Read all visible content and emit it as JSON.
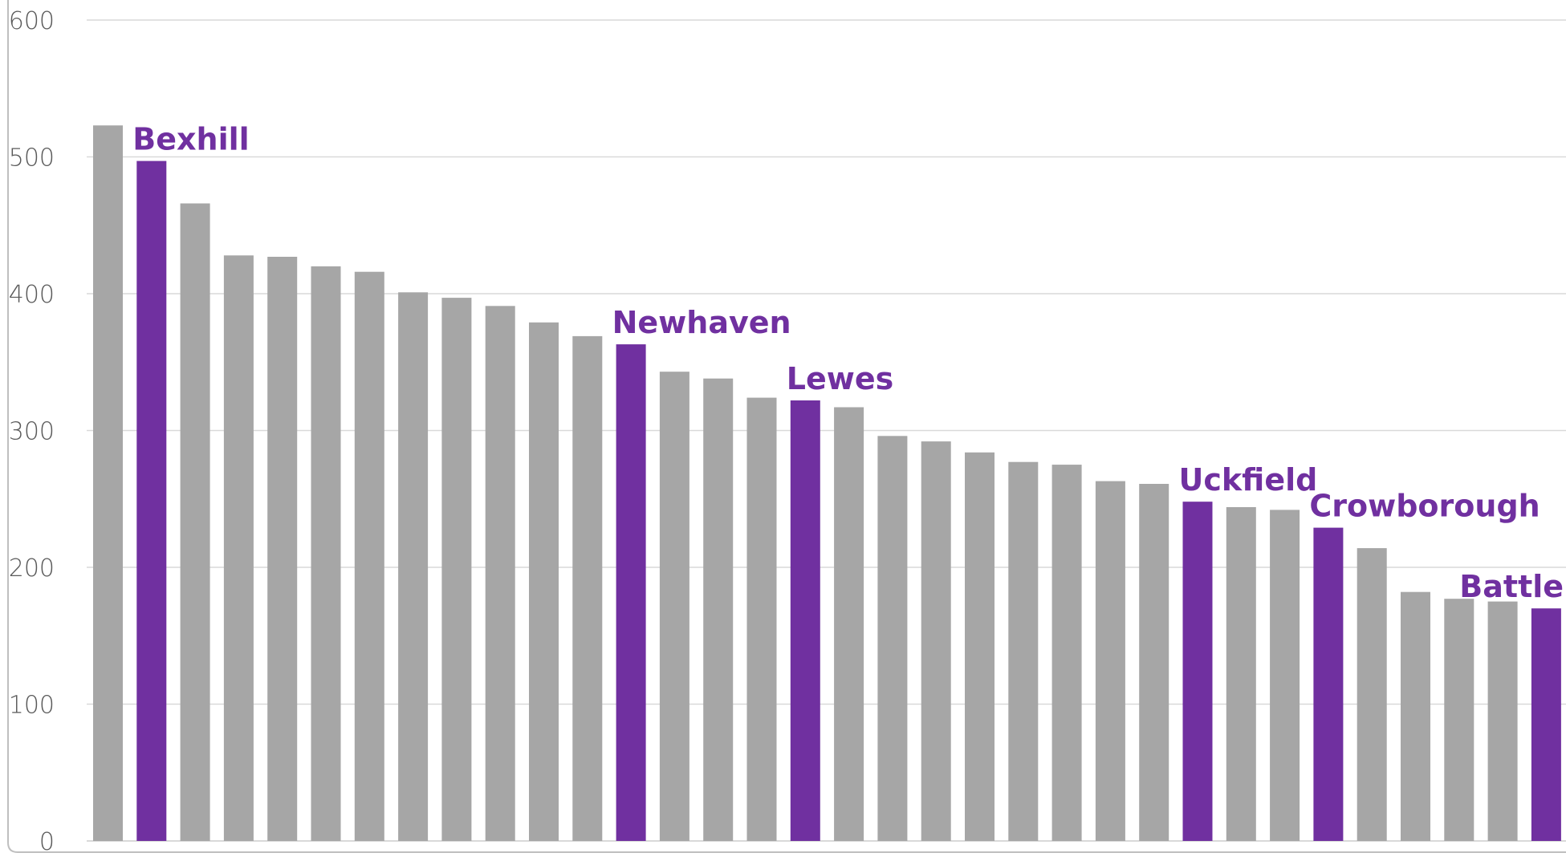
{
  "chart_data": {
    "type": "bar",
    "ylim": [
      0,
      600
    ],
    "yticks": [
      0,
      100,
      200,
      300,
      400,
      500,
      600
    ],
    "ytick_labels": [
      "0",
      "100",
      "200",
      "300",
      "400",
      "500",
      "600"
    ],
    "grid": true,
    "values": [
      523,
      497,
      466,
      428,
      427,
      420,
      416,
      401,
      397,
      391,
      379,
      369,
      363,
      343,
      338,
      324,
      322,
      317,
      296,
      292,
      284,
      277,
      275,
      263,
      261,
      248,
      244,
      242,
      229,
      214,
      182,
      177,
      175,
      170
    ],
    "highlighted_labels": {
      "1": "Bexhill",
      "12": "Newhaven",
      "16": "Lewes",
      "25": "Uckfield",
      "28": "Crowborough",
      "33": "Battle"
    },
    "colors": {
      "bar": "#a6a6a6",
      "highlight": "#7030a0",
      "grid": "#d9d9d9",
      "axis_text": "#595959",
      "frame": "#bfbfbf"
    }
  }
}
